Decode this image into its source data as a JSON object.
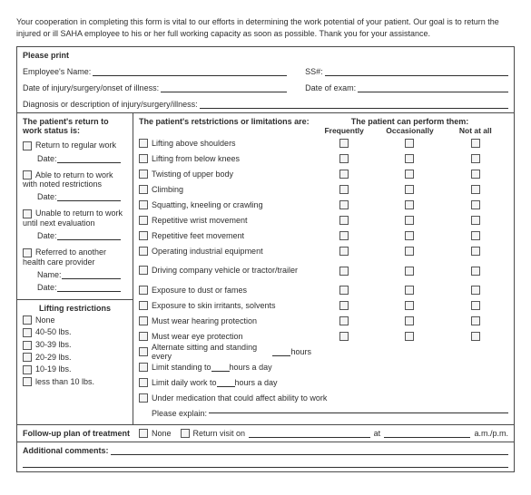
{
  "intro": "Your cooperation in completing this form is vital to our efforts in determining the work potential of your patient. Our goal is to return the injured or ill SAHA employee to his or her full working capacity as soon as possible. Thank you for your assistance.",
  "header": {
    "please_print": "Please print",
    "emp_name": "Employee's Name:",
    "ssn": "SS#:",
    "date_injury": "Date of injury/surgery/onset of illness:",
    "date_exam": "Date of exam:",
    "diagnosis": "Diagnosis or description of injury/surgery/illness:"
  },
  "status": {
    "title": "The patient's return to work status is:",
    "items": [
      {
        "label": "Return to regular work",
        "sub_label": "Date:"
      },
      {
        "label": "Able to return to work with noted restrictions",
        "sub_label": "Date:"
      },
      {
        "label": "Unable to return to work until next evaluation",
        "sub_label": "Date:"
      },
      {
        "label": "Referred to another health care provider",
        "sub_label": "Name:",
        "sub_label2": "Date:"
      }
    ]
  },
  "lift": {
    "title": "Lifting restrictions",
    "items": [
      "None",
      "40-50 lbs.",
      "30-39 lbs.",
      "20-29 lbs.",
      "10-19 lbs.",
      "less than 10 lbs."
    ]
  },
  "restrictions": {
    "title": "The patient's retstrictions or limitations are:",
    "perform_title": "The patient can perform them:",
    "col1": "Frequently",
    "col2": "Occasionally",
    "col3": "Not at all",
    "items": [
      "Lifting above shoulders",
      "Lifting from below knees",
      "Twisting of upper body",
      "Climbing",
      "Squatting, kneeling or crawling",
      "Repetitive wrist movement",
      "Repetitive feet movement",
      "Operating industrial equipment",
      "Driving company vehicle or tractor/trailer",
      "Exposure to dust or fames",
      "Exposure to skin irritants, solvents",
      "Must wear hearing protection",
      "Must wear eye protection"
    ],
    "alt_sit_a": "Alternate sitting and standing every",
    "alt_sit_b": "hours",
    "limit_stand_a": "Limit standing to",
    "limit_stand_b": "hours a day",
    "limit_work_a": "Limit daily work to",
    "limit_work_b": "hours a day",
    "under_med": "Under medication that could affect ability to work",
    "please_explain": "Please explain:"
  },
  "footer": {
    "followup": "Follow-up plan of treatment",
    "none": "None",
    "return_visit": "Return visit on",
    "at": "at",
    "ampm": "a.m./p.m.",
    "additional": "Additional comments:"
  }
}
